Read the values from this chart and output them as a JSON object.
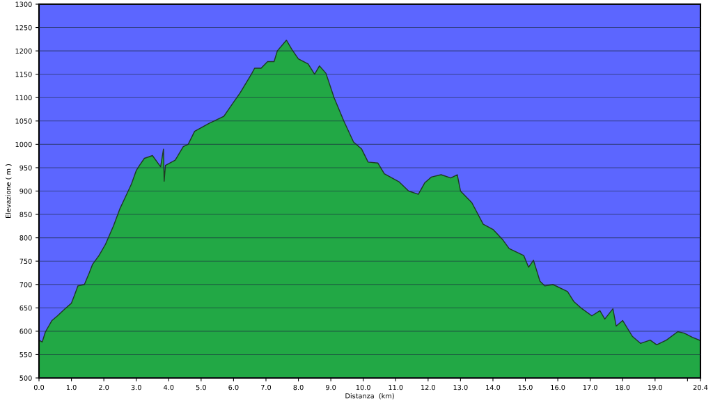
{
  "chart_data": {
    "type": "area",
    "xlabel": "Distanza  (km)",
    "ylabel": "Elevazione ( m )",
    "xlim": [
      0,
      20.4
    ],
    "ylim": [
      500,
      1300
    ],
    "xticks": [
      {
        "value": 0,
        "label": "0.0"
      },
      {
        "value": 1,
        "label": "1.0"
      },
      {
        "value": 2,
        "label": "2.0"
      },
      {
        "value": 3,
        "label": "3.0"
      },
      {
        "value": 4,
        "label": "4.0"
      },
      {
        "value": 5,
        "label": "5.0"
      },
      {
        "value": 6,
        "label": "6.0"
      },
      {
        "value": 7,
        "label": "7.0"
      },
      {
        "value": 8,
        "label": "8.0"
      },
      {
        "value": 9,
        "label": "9.0"
      },
      {
        "value": 10,
        "label": "10.0"
      },
      {
        "value": 11,
        "label": "11.0"
      },
      {
        "value": 12,
        "label": "12.0"
      },
      {
        "value": 13,
        "label": "13.0"
      },
      {
        "value": 14,
        "label": "14.0"
      },
      {
        "value": 15,
        "label": "15.0"
      },
      {
        "value": 16,
        "label": "16.0"
      },
      {
        "value": 17,
        "label": "17.0"
      },
      {
        "value": 18,
        "label": "18.0"
      },
      {
        "value": 19,
        "label": "19.0"
      },
      {
        "value": 20,
        "label": null
      },
      {
        "value": 20.4,
        "label": "20.4"
      }
    ],
    "yticks": [
      500,
      550,
      600,
      650,
      700,
      750,
      800,
      850,
      900,
      950,
      1000,
      1050,
      1100,
      1150,
      1200,
      1250,
      1300
    ],
    "grid": "y",
    "x": [
      0,
      0.1,
      0.2,
      0.3,
      0.4,
      0.57,
      0.8,
      1.0,
      1.1,
      1.2,
      1.4,
      1.55,
      1.65,
      1.85,
      2.05,
      2.3,
      2.5,
      2.65,
      2.85,
      3.0,
      3.1,
      3.25,
      3.5,
      3.75,
      3.84,
      3.86,
      3.9,
      4.2,
      4.45,
      4.6,
      4.8,
      5.25,
      5.7,
      6.0,
      6.2,
      6.55,
      6.65,
      6.85,
      7.05,
      7.25,
      7.35,
      7.63,
      7.8,
      8.0,
      8.3,
      8.5,
      8.65,
      8.85,
      9.1,
      9.4,
      9.7,
      9.95,
      10.15,
      10.45,
      10.65,
      11.1,
      11.4,
      11.7,
      11.9,
      12.1,
      12.4,
      12.7,
      12.9,
      13.0,
      13.35,
      13.7,
      14.0,
      14.3,
      14.5,
      14.95,
      15.1,
      15.25,
      15.45,
      15.6,
      15.85,
      16.3,
      16.5,
      16.75,
      17.05,
      17.3,
      17.45,
      17.7,
      17.8,
      18.0,
      18.3,
      18.55,
      18.85,
      19.05,
      19.35,
      19.7,
      19.9,
      20.15,
      20.4
    ],
    "series": [
      {
        "color": "#22a845",
        "values": [
          581,
          577,
          599,
          611,
          623,
          633,
          648,
          660,
          678,
          697,
          700,
          725,
          743,
          762,
          786,
          826,
          863,
          885,
          915,
          944,
          955,
          970,
          976,
          952,
          990,
          921,
          955,
          966,
          995,
          1000,
          1028,
          1045,
          1060,
          1090,
          1110,
          1150,
          1163,
          1163,
          1177,
          1177,
          1200,
          1223,
          1203,
          1183,
          1172,
          1150,
          1168,
          1152,
          1100,
          1050,
          1005,
          990,
          962,
          960,
          937,
          920,
          900,
          893,
          918,
          930,
          935,
          928,
          935,
          900,
          875,
          829,
          818,
          796,
          777,
          762,
          737,
          752,
          707,
          697,
          700,
          685,
          663,
          648,
          633,
          644,
          626,
          648,
          611,
          623,
          589,
          574,
          581,
          571,
          581,
          599,
          596,
          587,
          580
        ]
      }
    ]
  }
}
